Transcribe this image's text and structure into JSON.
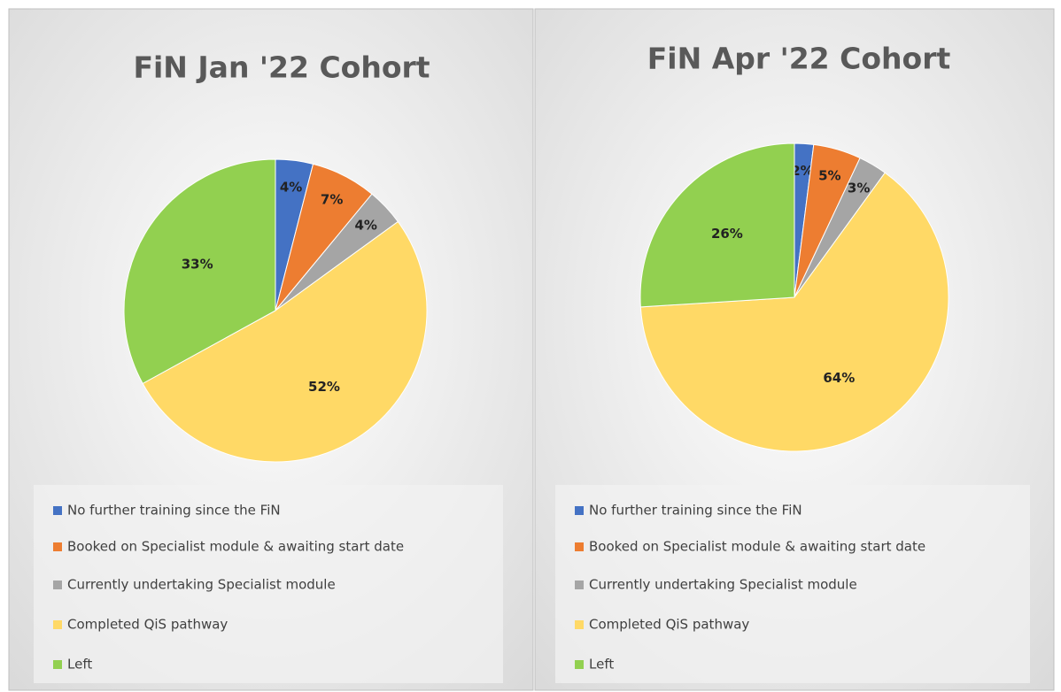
{
  "chart_data": [
    {
      "type": "pie",
      "title": "FiN Jan '22 Cohort",
      "categories": [
        "No further training since the FiN",
        "Booked on Specialist module & awaiting start date",
        "Currently undertaking Specialist module",
        "Completed QiS pathway",
        "Left"
      ],
      "values": [
        4,
        7,
        4,
        52,
        33
      ],
      "value_labels": [
        "4%",
        "7%",
        "4%",
        "52%",
        "33%"
      ],
      "colors": [
        "#4472c4",
        "#ed7d31",
        "#a5a5a5",
        "#ffd966",
        "#92d050"
      ]
    },
    {
      "type": "pie",
      "title": "FiN Apr '22 Cohort",
      "categories": [
        "No further training since the FiN",
        "Booked on Specialist module & awaiting start date",
        "Currently undertaking Specialist module",
        "Completed QiS pathway",
        "Left"
      ],
      "values": [
        2,
        5,
        3,
        64,
        26
      ],
      "value_labels": [
        "2%",
        "5%",
        "3%",
        "64%",
        "26%"
      ],
      "colors": [
        "#4472c4",
        "#ed7d31",
        "#a5a5a5",
        "#ffd966",
        "#92d050"
      ]
    }
  ]
}
